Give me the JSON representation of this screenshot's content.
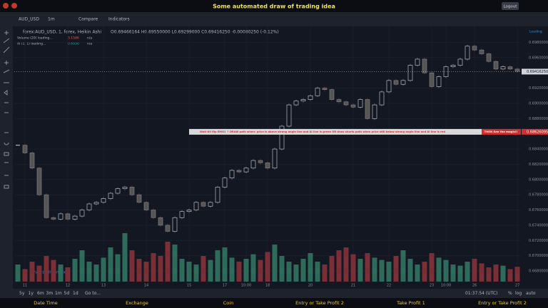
{
  "header": {
    "title": "Some automated draw of trading idea",
    "logout": "Logout"
  },
  "toolbar": {
    "symbol": "AUD_USD",
    "interval": "1m",
    "compare": "Compare",
    "indicators": "Indicators",
    "loading": "Loading"
  },
  "legend": {
    "symbol": "forex:AUD_USD, 1, forex, Heikin Ashi",
    "ohlc": "O0.69466164 H0.69550000 L0.69299000 C0.69416250 -0.00080250 (-0.12%)",
    "volume": "Volume (20) loading...",
    "volume_value": "3.1586",
    "volume_na": "n/a",
    "ai": "AI (1, 1) loading...",
    "ai_value": "0.6930",
    "ai_na": "n/a"
  },
  "annotation": {
    "text": "Wait till flip EMO1 ↑    DRAW path when:  price is above strong angle line and AI line is green      OR      draw shorts path when price still below strong angle line and AI line is red",
    "magic": "THEN See the magic!!"
  },
  "watermark": "Chart by TradingView",
  "bottom_bar": {
    "ranges": [
      "5y",
      "1y",
      "6m",
      "3m",
      "1m",
      "5d",
      "1d"
    ],
    "goto": "Go to...",
    "clock": "01:37:54 (UTC)",
    "percent": "%",
    "log": "log",
    "auto": "auto"
  },
  "footer": [
    "Date Time",
    "Exchange",
    "Coin",
    "Entry or Take Profit 2",
    "Take Profit 1",
    "Entry or Take Profit 2"
  ],
  "chart_data": {
    "type": "candlestick",
    "categories": [
      null,
      "11",
      null,
      null,
      null,
      null,
      null,
      "12",
      null,
      null,
      null,
      null,
      "13",
      null,
      null,
      null,
      null,
      null,
      "14",
      null,
      null,
      null,
      null,
      null,
      "15",
      null,
      null,
      null,
      null,
      "17",
      null,
      null,
      "10:00",
      null,
      null,
      "18",
      null,
      null,
      null,
      null,
      null,
      "20",
      null,
      null,
      null,
      null,
      null,
      "21",
      null,
      null,
      null,
      null,
      "22",
      null,
      null,
      null,
      null,
      null,
      "23",
      null,
      "10:00",
      null,
      null,
      null,
      "26",
      null,
      null,
      null,
      null,
      null,
      "27"
    ],
    "series": [
      {
        "name": "AUD_USD",
        "color": "#d1d4dc",
        "values": [
          0.6845,
          0.6835,
          0.6815,
          0.678,
          0.675,
          0.6748,
          0.6755,
          0.6748,
          0.6752,
          0.676,
          0.6768,
          0.677,
          0.6775,
          0.6782,
          0.6788,
          0.679,
          0.678,
          0.677,
          0.676,
          0.675,
          0.674,
          0.6732,
          0.675,
          0.6758,
          0.676,
          0.677,
          0.6765,
          0.677,
          0.679,
          0.6802,
          0.6812,
          0.681,
          0.6815,
          0.6825,
          0.6822,
          0.6815,
          0.684,
          0.687,
          0.6898,
          0.6903,
          0.6905,
          0.691,
          0.692,
          0.6918,
          0.6905,
          0.6902,
          0.6898,
          0.6895,
          0.6905,
          0.688,
          0.6898,
          0.6915,
          0.693,
          0.6925,
          0.693,
          0.695,
          0.6958,
          0.694,
          0.6922,
          0.6935,
          0.6948,
          0.695,
          0.6958,
          0.6975,
          0.697,
          0.6965,
          0.6955,
          0.6945,
          0.6948,
          0.6945,
          0.6942
        ]
      },
      {
        "name": "Volume",
        "axis": "y2",
        "values": [
          30,
          22,
          35,
          28,
          45,
          38,
          30,
          25,
          40,
          55,
          35,
          30,
          42,
          60,
          48,
          85,
          55,
          40,
          35,
          50,
          45,
          70,
          65,
          40,
          35,
          30,
          45,
          38,
          55,
          60,
          42,
          35,
          40,
          48,
          38,
          52,
          65,
          45,
          35,
          30,
          40,
          50,
          35,
          30,
          45,
          55,
          60,
          48,
          40,
          50,
          42,
          38,
          35,
          45,
          55,
          40,
          30,
          35,
          50,
          42,
          38,
          30,
          28,
          35,
          40,
          32,
          25,
          30,
          28,
          22,
          26
        ]
      }
    ],
    "up_color": "#2e6b5a",
    "down_color": "#7a2f36",
    "ylim": [
      0.6666,
      0.7001
    ],
    "yticks": [
      {
        "value": 0.668,
        "label": "0.66800000"
      },
      {
        "value": 0.67,
        "label": "0.67000000"
      },
      {
        "value": 0.672,
        "label": "0.67200000"
      },
      {
        "value": 0.674,
        "label": "0.67400000"
      },
      {
        "value": 0.676,
        "label": "0.67600000"
      },
      {
        "value": 0.678,
        "label": "0.67800000"
      },
      {
        "value": 0.68,
        "label": "0.68000000"
      },
      {
        "value": 0.682,
        "label": "0.68200000"
      },
      {
        "value": 0.684,
        "label": "0.68400000"
      },
      {
        "value": 0.688,
        "label": "0.68800000"
      },
      {
        "value": 0.69,
        "label": "0.69000000"
      },
      {
        "value": 0.692,
        "label": "0.69200000"
      },
      {
        "value": 0.696,
        "label": "0.69600000"
      },
      {
        "value": 0.698,
        "label": "0.69800000"
      }
    ],
    "y2lim": [
      0,
      100
    ],
    "last_price": {
      "value": 0.6941625,
      "label": "0.69416250"
    },
    "alert_price": {
      "value": 0.68626095,
      "label": "0.68626095"
    },
    "grid": true
  }
}
